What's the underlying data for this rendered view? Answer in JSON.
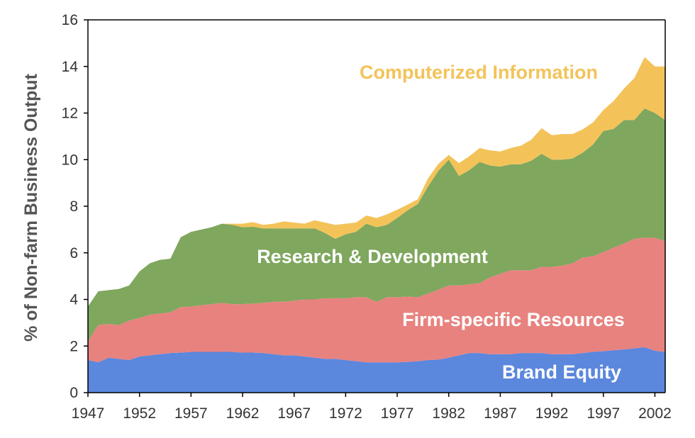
{
  "chart_data": {
    "type": "area",
    "stacked": true,
    "ylabel": "% of Non-farm Business Output",
    "xlabel": "",
    "ylim": [
      0,
      16
    ],
    "xlim": [
      1947,
      2003
    ],
    "yticks": [
      "0",
      "2",
      "4",
      "6",
      "8",
      "10",
      "12",
      "14",
      "16"
    ],
    "xticks": [
      "1947",
      "1952",
      "1957",
      "1962",
      "1967",
      "1972",
      "1977",
      "1982",
      "1987",
      "1992",
      "1997",
      "2002"
    ],
    "grid": false,
    "x": [
      1947,
      1948,
      1949,
      1950,
      1951,
      1952,
      1953,
      1954,
      1955,
      1956,
      1957,
      1958,
      1959,
      1960,
      1961,
      1962,
      1963,
      1964,
      1965,
      1966,
      1967,
      1968,
      1969,
      1970,
      1971,
      1972,
      1973,
      1974,
      1975,
      1976,
      1977,
      1978,
      1979,
      1980,
      1981,
      1982,
      1983,
      1984,
      1985,
      1986,
      1987,
      1988,
      1989,
      1990,
      1991,
      1992,
      1993,
      1994,
      1995,
      1996,
      1997,
      1998,
      1999,
      2000,
      2001,
      2002,
      2003
    ],
    "series": [
      {
        "name": "Brand Equity",
        "color": "#5b87dd",
        "values": [
          1.4,
          1.3,
          1.5,
          1.45,
          1.4,
          1.55,
          1.6,
          1.65,
          1.7,
          1.72,
          1.75,
          1.75,
          1.75,
          1.75,
          1.75,
          1.72,
          1.72,
          1.7,
          1.65,
          1.6,
          1.6,
          1.55,
          1.5,
          1.45,
          1.45,
          1.4,
          1.35,
          1.3,
          1.3,
          1.3,
          1.3,
          1.32,
          1.35,
          1.4,
          1.42,
          1.5,
          1.6,
          1.7,
          1.7,
          1.65,
          1.65,
          1.65,
          1.7,
          1.7,
          1.7,
          1.65,
          1.65,
          1.65,
          1.7,
          1.75,
          1.78,
          1.82,
          1.85,
          1.9,
          1.95,
          1.8,
          1.75
        ]
      },
      {
        "name": "Firm-specific Resources",
        "color": "#e8827f",
        "values": [
          0.8,
          1.6,
          1.45,
          1.45,
          1.7,
          1.65,
          1.75,
          1.75,
          1.75,
          1.95,
          1.95,
          2.0,
          2.05,
          2.1,
          2.05,
          2.08,
          2.1,
          2.15,
          2.25,
          2.3,
          2.35,
          2.45,
          2.5,
          2.6,
          2.6,
          2.65,
          2.75,
          2.8,
          2.6,
          2.8,
          2.8,
          2.8,
          2.75,
          2.85,
          3.0,
          3.1,
          3.0,
          2.95,
          3.0,
          3.3,
          3.45,
          3.6,
          3.55,
          3.55,
          3.7,
          3.75,
          3.8,
          3.9,
          4.1,
          4.1,
          4.25,
          4.4,
          4.55,
          4.7,
          4.7,
          4.85,
          4.75
        ]
      },
      {
        "name": "Research & Development",
        "color": "#7fa75d",
        "values": [
          1.5,
          1.45,
          1.45,
          1.55,
          1.5,
          2.0,
          2.2,
          2.3,
          2.3,
          3.0,
          3.2,
          3.25,
          3.3,
          3.4,
          3.4,
          3.3,
          3.3,
          3.2,
          3.15,
          3.15,
          3.1,
          3.05,
          3.05,
          2.8,
          2.55,
          2.75,
          2.8,
          3.15,
          3.2,
          3.1,
          3.4,
          3.7,
          4.0,
          4.6,
          5.1,
          5.4,
          4.7,
          4.9,
          5.2,
          4.8,
          4.6,
          4.55,
          4.55,
          4.7,
          4.85,
          4.6,
          4.55,
          4.5,
          4.5,
          4.8,
          5.2,
          5.1,
          5.3,
          5.1,
          5.55,
          5.35,
          5.2
        ]
      },
      {
        "name": "Computerized Information",
        "color": "#f3c35a",
        "values": [
          0.0,
          0.0,
          0.0,
          0.0,
          0.0,
          0.0,
          0.0,
          0.0,
          0.0,
          0.0,
          0.0,
          0.0,
          0.0,
          0.0,
          0.05,
          0.15,
          0.2,
          0.15,
          0.2,
          0.3,
          0.25,
          0.2,
          0.35,
          0.45,
          0.6,
          0.45,
          0.4,
          0.35,
          0.4,
          0.45,
          0.35,
          0.25,
          0.2,
          0.35,
          0.3,
          0.2,
          0.55,
          0.6,
          0.6,
          0.65,
          0.65,
          0.7,
          0.8,
          0.9,
          1.1,
          1.05,
          1.1,
          1.05,
          1.0,
          0.95,
          0.9,
          1.2,
          1.35,
          1.8,
          2.2,
          2.0,
          2.3
        ]
      }
    ],
    "annotations": [
      {
        "text": "Computerized Information",
        "series": "Computerized Information",
        "color": "#f3c35a"
      },
      {
        "text": "Research & Development",
        "series": "Research & Development",
        "color": "#ffffff"
      },
      {
        "text": "Firm-specific Resources",
        "series": "Firm-specific Resources",
        "color": "#ffffff"
      },
      {
        "text": "Brand Equity",
        "series": "Brand Equity",
        "color": "#ffffff"
      }
    ]
  }
}
